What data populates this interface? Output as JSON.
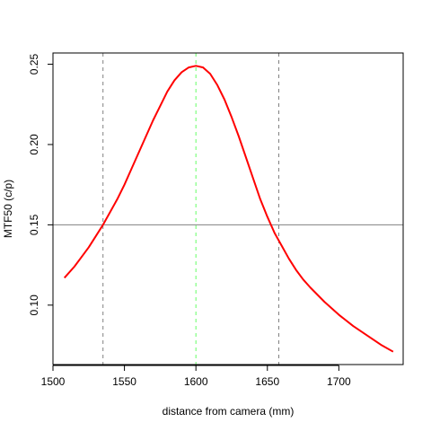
{
  "chart_data": {
    "type": "line",
    "title": "",
    "xlabel": "distance from camera (mm)",
    "ylabel": "MTF50 (c/p)",
    "xlim": [
      1500,
      1745
    ],
    "ylim": [
      0.063,
      0.257
    ],
    "xticks": [
      1500,
      1550,
      1600,
      1650,
      1700
    ],
    "yticks": [
      0.1,
      0.15,
      0.2,
      0.25
    ],
    "xtick_labels": [
      "1500",
      "1550",
      "1600",
      "1650",
      "1700"
    ],
    "ytick_labels": [
      "0.10",
      "0.15",
      "0.20",
      "0.25"
    ],
    "grid": false,
    "series": [
      {
        "color": "#ff0000",
        "x": [
          1508,
          1515,
          1520,
          1525,
          1530,
          1535,
          1540,
          1545,
          1550,
          1555,
          1560,
          1565,
          1570,
          1575,
          1580,
          1585,
          1590,
          1595,
          1600,
          1605,
          1610,
          1615,
          1620,
          1625,
          1630,
          1635,
          1640,
          1645,
          1650,
          1655,
          1660,
          1665,
          1670,
          1675,
          1680,
          1690,
          1700,
          1710,
          1720,
          1730,
          1738
        ],
        "y": [
          0.117,
          0.124,
          0.13,
          0.136,
          0.143,
          0.15,
          0.158,
          0.166,
          0.175,
          0.185,
          0.195,
          0.205,
          0.215,
          0.224,
          0.233,
          0.24,
          0.245,
          0.248,
          0.249,
          0.248,
          0.244,
          0.237,
          0.228,
          0.217,
          0.205,
          0.192,
          0.179,
          0.166,
          0.155,
          0.145,
          0.137,
          0.129,
          0.122,
          0.116,
          0.111,
          0.102,
          0.094,
          0.087,
          0.081,
          0.075,
          0.071
        ]
      }
    ],
    "reference_lines": [
      {
        "orientation": "horizontal",
        "value": 0.15,
        "color": "#808080",
        "style": "solid"
      },
      {
        "orientation": "vertical",
        "value": 1535,
        "color": "#808080",
        "style": "dashed"
      },
      {
        "orientation": "vertical",
        "value": 1600,
        "color": "#66ff66",
        "style": "dashed"
      },
      {
        "orientation": "vertical",
        "value": 1658,
        "color": "#808080",
        "style": "dashed"
      }
    ]
  }
}
